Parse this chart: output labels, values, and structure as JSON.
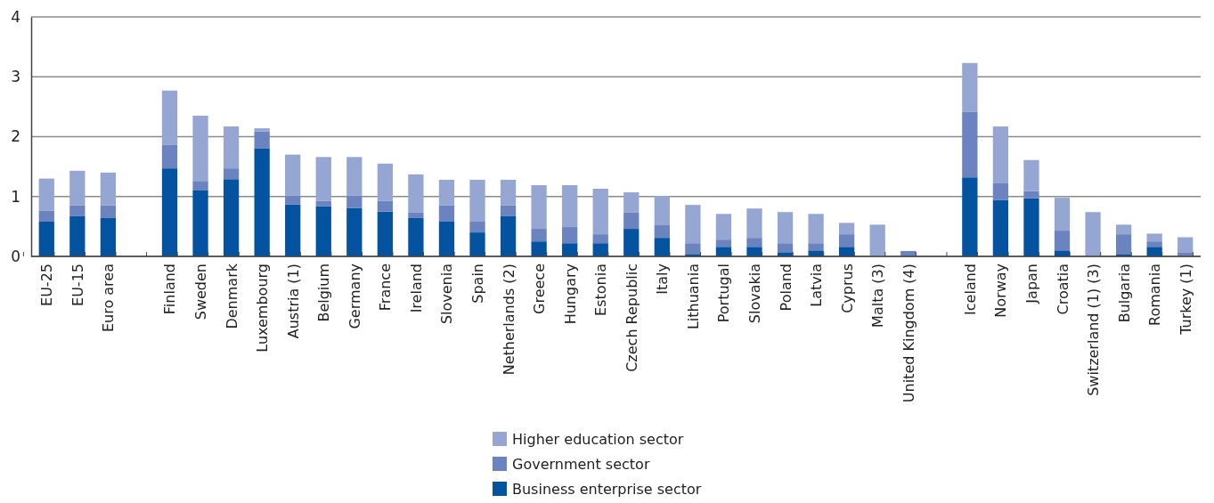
{
  "chart_data": {
    "type": "bar",
    "stacked": true,
    "categories": [
      "EU-25",
      "EU-15",
      "Euro area",
      null,
      "Finland",
      "Sweden",
      "Denmark",
      "Luxembourg",
      "Austria (1)",
      "Belgium",
      "Germany",
      "France",
      "Ireland",
      "Slovenia",
      "Spain",
      "Netherlands (2)",
      "Greece",
      "Hungary",
      "Estonia",
      "Czech Republic",
      "Italy",
      "Lithuania",
      "Portugal",
      "Slovakia",
      "Poland",
      "Latvia",
      "Cyprus",
      "Malta (3)",
      "United Kingdom (4)",
      null,
      "Iceland",
      "Norway",
      "Japan",
      "Croatia",
      "Switzerland (1) (3)",
      "Bulgaria",
      "Romania",
      "Turkey (1)"
    ],
    "series": [
      {
        "name": "Business enterprise sector",
        "color": "#0353a1",
        "values": [
          0.58,
          0.67,
          0.64,
          null,
          1.47,
          1.11,
          1.29,
          1.8,
          0.87,
          0.84,
          0.81,
          0.75,
          0.64,
          0.58,
          0.4,
          0.67,
          0.25,
          0.22,
          0.22,
          0.46,
          0.31,
          0.04,
          0.16,
          0.16,
          0.07,
          0.1,
          0.16,
          0,
          0,
          null,
          1.32,
          0.94,
          0.97,
          0.1,
          0,
          0.04,
          0.16,
          0
        ]
      },
      {
        "name": "Government sector",
        "color": "#6b83bf",
        "values": [
          0.18,
          0.18,
          0.21,
          null,
          0.39,
          0.15,
          0.18,
          0.29,
          0.15,
          0.09,
          0.21,
          0.18,
          0.09,
          0.27,
          0.18,
          0.18,
          0.21,
          0.27,
          0.15,
          0.27,
          0.21,
          0.18,
          0.12,
          0.15,
          0.15,
          0.12,
          0.21,
          0,
          0.09,
          null,
          1.09,
          0.29,
          0.12,
          0.33,
          0,
          0.33,
          0.09,
          0.07
        ]
      },
      {
        "name": "Higher education sector",
        "color": "#96a6d2",
        "values": [
          0.54,
          0.58,
          0.55,
          null,
          0.91,
          1.09,
          0.7,
          0.05,
          0.68,
          0.73,
          0.64,
          0.62,
          0.64,
          0.43,
          0.7,
          0.43,
          0.73,
          0.7,
          0.76,
          0.34,
          0.49,
          0.64,
          0.43,
          0.49,
          0.52,
          0.49,
          0.19,
          0.53,
          0,
          null,
          0.82,
          0.94,
          0.52,
          0.55,
          0.74,
          0.16,
          0.13,
          0.25
        ]
      }
    ],
    "ylim": [
      0,
      4
    ],
    "yticks": [
      0,
      1,
      2,
      3,
      4
    ],
    "grid": "y",
    "legend": "bottom"
  }
}
